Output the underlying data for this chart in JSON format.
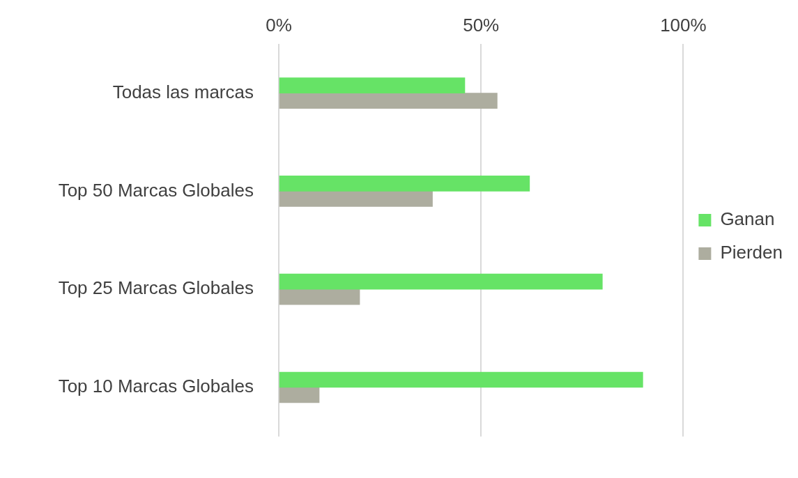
{
  "chart_data": {
    "type": "bar",
    "orientation": "horizontal",
    "categories": [
      "Todas las marcas",
      "Top 50 Marcas Globales",
      "Top 25 Marcas Globales",
      "Top 10 Marcas Globales"
    ],
    "series": [
      {
        "name": "Ganan",
        "color": "#66e366",
        "values": [
          46,
          62,
          80,
          90
        ]
      },
      {
        "name": "Pierden",
        "color": "#adad9f",
        "values": [
          54,
          38,
          20,
          10
        ]
      }
    ],
    "xlim": [
      0,
      100
    ],
    "xticks": [
      {
        "value": 0,
        "label": "0%"
      },
      {
        "value": 50,
        "label": "50%"
      },
      {
        "value": 100,
        "label": "100%"
      }
    ],
    "grid": "x",
    "legend": "right"
  }
}
